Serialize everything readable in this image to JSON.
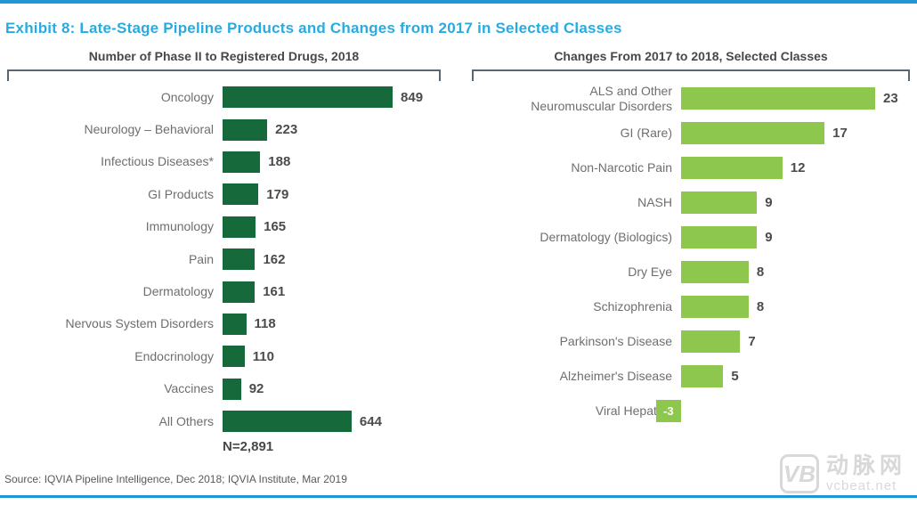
{
  "page": {
    "title": "Exhibit 8: Late-Stage Pipeline Products and Changes from 2017 in Selected Classes",
    "source": "Source: IQVIA Pipeline Intelligence, Dec 2018; IQVIA Institute, Mar 2019",
    "accent_colors": {
      "title_cyan": "#29ABE2",
      "top_bottom_bar_blue": "#1E96D2",
      "bracket_gray": "#5B6673",
      "dark_green": "#16693B",
      "light_green": "#8DC74E"
    }
  },
  "chart_data": [
    {
      "type": "bar",
      "orientation": "horizontal",
      "title": "Number of Phase II to Registered Drugs, 2018",
      "categories": [
        "Oncology",
        "Neurology – Behavioral",
        "Infectious Diseases*",
        "GI Products",
        "Immunology",
        "Pain",
        "Dermatology",
        "Nervous System Disorders",
        "Endocrinology",
        "Vaccines",
        "All Others"
      ],
      "values": [
        849,
        223,
        188,
        179,
        165,
        162,
        161,
        118,
        110,
        92,
        644
      ],
      "n_label": "N=2,891",
      "bar_color": "#16693B",
      "xlim": [
        0,
        900
      ],
      "grid": false,
      "data_labels": true
    },
    {
      "type": "bar",
      "orientation": "horizontal",
      "title": "Changes From 2017 to 2018, Selected Classes",
      "categories": [
        "ALS and Other\nNeuromuscular Disorders",
        "GI (Rare)",
        "Non-Narcotic Pain",
        "NASH",
        "Dermatology (Biologics)",
        "Dry Eye",
        "Schizophrenia",
        "Parkinson's Disease",
        "Alzheimer's Disease",
        "Viral Hepatitis"
      ],
      "values": [
        23,
        17,
        12,
        9,
        9,
        8,
        8,
        7,
        5,
        -3
      ],
      "bar_color": "#8DC74E",
      "xlim": [
        -4,
        24
      ],
      "grid": false,
      "data_labels": true
    }
  ],
  "watermark": {
    "logo": "VB",
    "cn_text": "动脉网",
    "site": "vcbeat.net"
  }
}
